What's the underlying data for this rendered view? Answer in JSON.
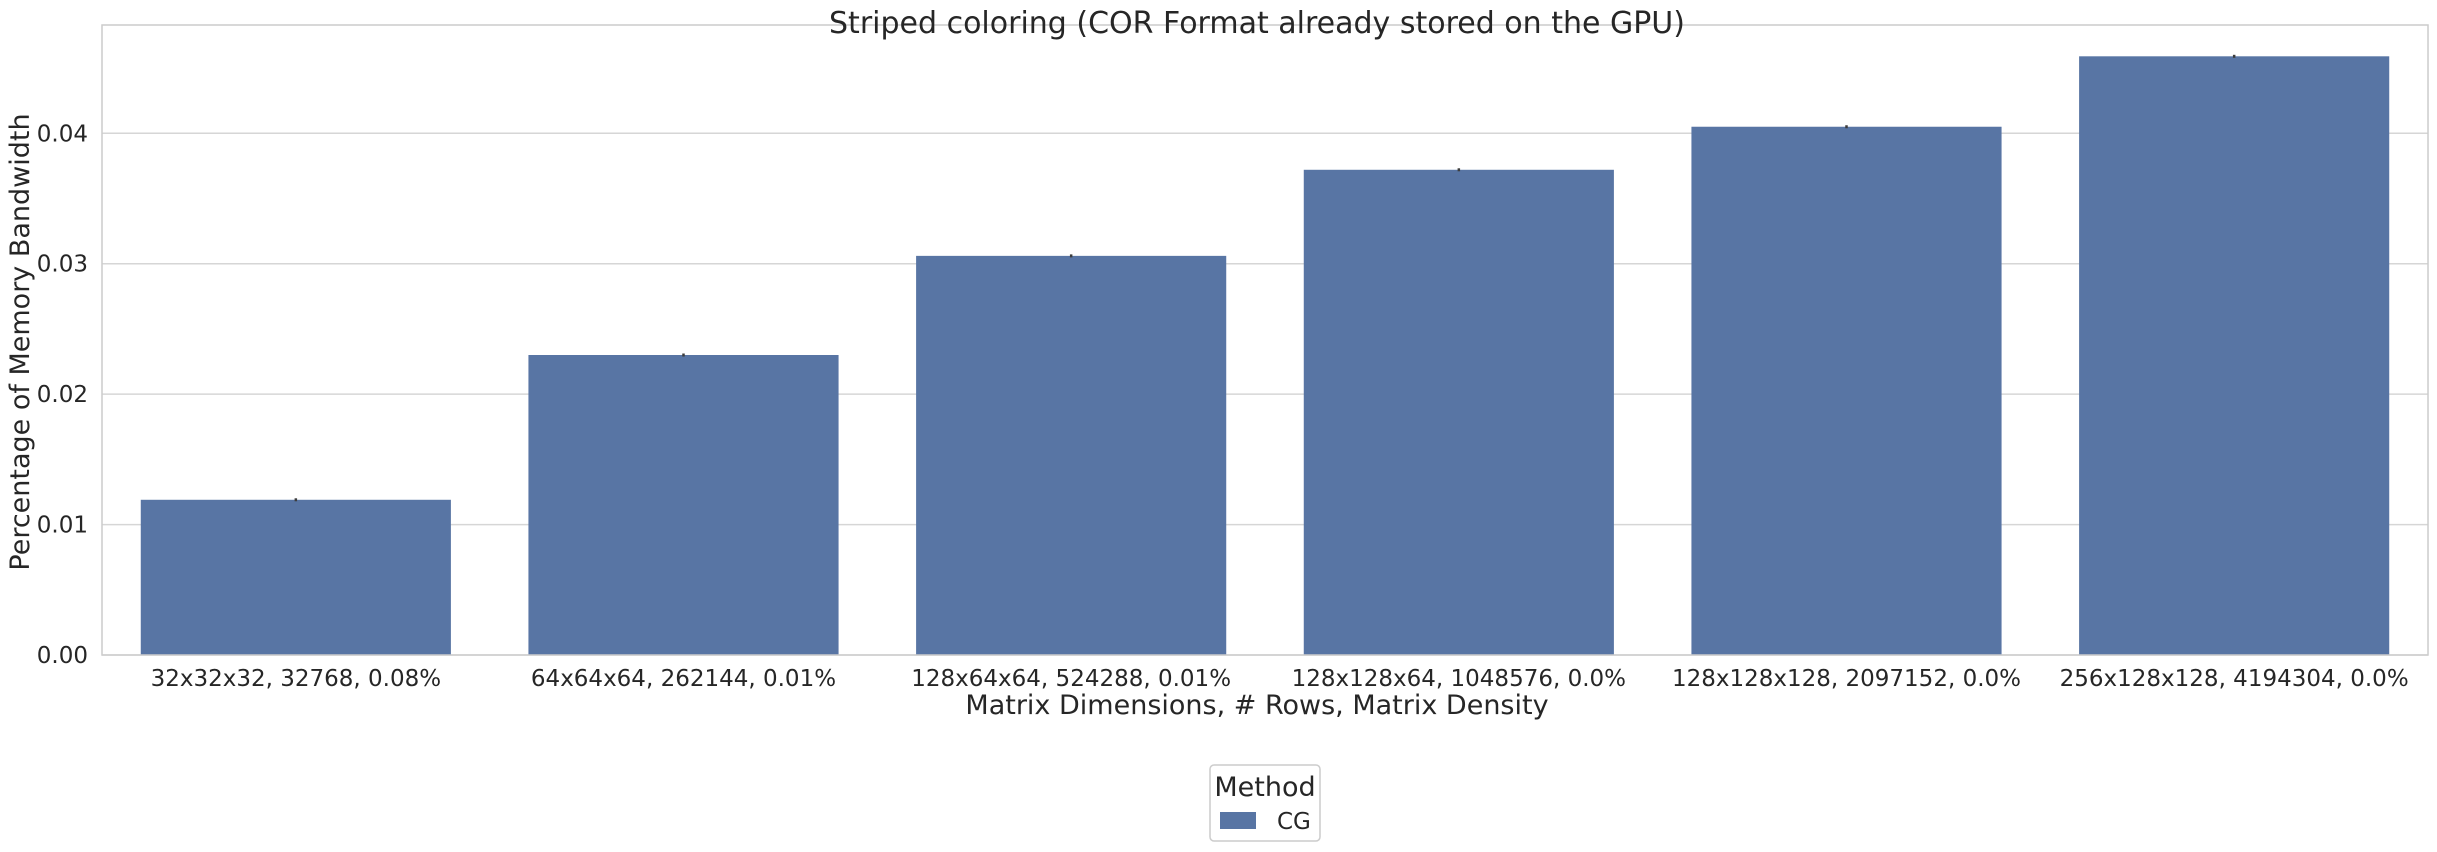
{
  "chart_data": {
    "type": "bar",
    "title": "Striped coloring (COR Format already stored on the GPU)",
    "xlabel": "Matrix Dimensions, # Rows, Matrix Density",
    "ylabel": "Percentage of Memory Bandwidth",
    "categories": [
      "32x32x32, 32768, 0.08%",
      "64x64x64, 262144, 0.01%",
      "128x64x64, 524288, 0.01%",
      "128x128x64, 1048576, 0.0%",
      "128x128x128, 2097152, 0.0%",
      "256x128x128, 4194304, 0.0%"
    ],
    "series": [
      {
        "name": "CG",
        "values": [
          0.0119,
          0.023,
          0.0306,
          0.0372,
          0.0405,
          0.0459
        ],
        "color": "#5875a4"
      }
    ],
    "error_bars": [
      0.0001,
      0.0001,
      0.0001,
      0.0001,
      0.0,
      0.0001
    ],
    "ylim": [
      0,
      0.0483
    ],
    "yticks": [
      0.0,
      0.01,
      0.02,
      0.03,
      0.04
    ],
    "ytick_labels": [
      "0.00",
      "0.01",
      "0.02",
      "0.03",
      "0.04"
    ],
    "grid": true,
    "legend": {
      "title": "Method",
      "placement": "bottom-center"
    }
  }
}
